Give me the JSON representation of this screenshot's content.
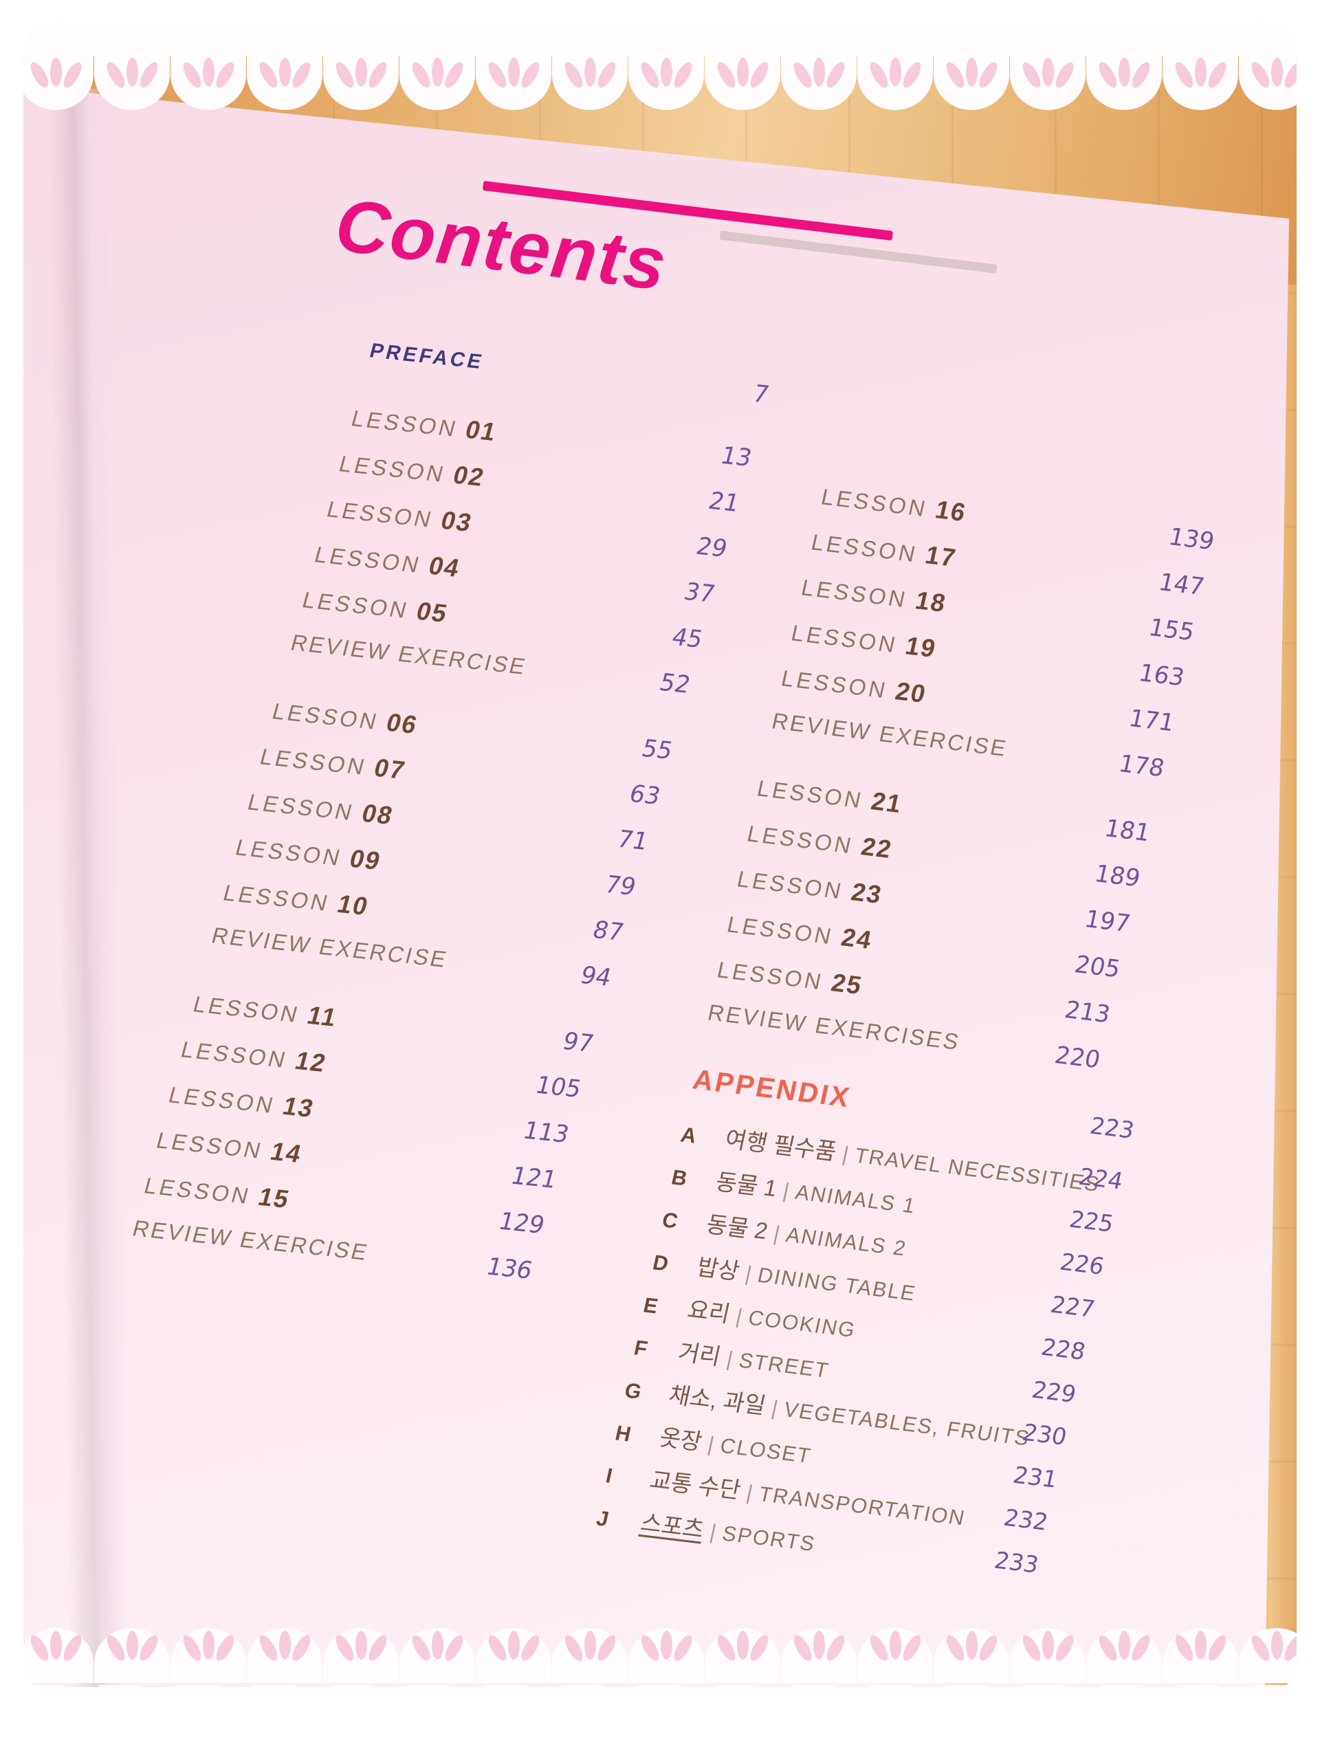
{
  "title": {
    "text": "Contents"
  },
  "divider": "|",
  "colors": {
    "accent_magenta": "#e8117f",
    "accent_coral": "#ee6450",
    "page_pink": "#fae2ec",
    "number_purple": "#6f549b",
    "lesson_brown": "#957361",
    "preface_navy": "#3e3a7a"
  },
  "left_rows": [
    {
      "label": "PREFACE",
      "page": "7"
    },
    {
      "label": "LESSON",
      "num": "01",
      "page": "13"
    },
    {
      "label": "LESSON",
      "num": "02",
      "page": "21"
    },
    {
      "label": "LESSON",
      "num": "03",
      "page": "29"
    },
    {
      "label": "LESSON",
      "num": "04",
      "page": "37"
    },
    {
      "label": "LESSON",
      "num": "05",
      "page": "45"
    },
    {
      "label": "REVIEW EXERCISE",
      "page": "52"
    },
    {
      "label": "LESSON",
      "num": "06",
      "page": "55"
    },
    {
      "label": "LESSON",
      "num": "07",
      "page": "63"
    },
    {
      "label": "LESSON",
      "num": "08",
      "page": "71"
    },
    {
      "label": "LESSON",
      "num": "09",
      "page": "79"
    },
    {
      "label": "LESSON",
      "num": "10",
      "page": "87"
    },
    {
      "label": "REVIEW EXERCISE",
      "page": "94"
    },
    {
      "label": "LESSON",
      "num": "11",
      "page": "97"
    },
    {
      "label": "LESSON",
      "num": "12",
      "page": "105"
    },
    {
      "label": "LESSON",
      "num": "13",
      "page": "113"
    },
    {
      "label": "LESSON",
      "num": "14",
      "page": "121"
    },
    {
      "label": "LESSON",
      "num": "15",
      "page": "129"
    },
    {
      "label": "REVIEW EXERCISE",
      "page": "136"
    }
  ],
  "right_rows": [
    {
      "label": "LESSON",
      "num": "16",
      "page": "139"
    },
    {
      "label": "LESSON",
      "num": "17",
      "page": "147"
    },
    {
      "label": "LESSON",
      "num": "18",
      "page": "155"
    },
    {
      "label": "LESSON",
      "num": "19",
      "page": "163"
    },
    {
      "label": "LESSON",
      "num": "20",
      "page": "171"
    },
    {
      "label": "REVIEW EXERCISE",
      "page": "178"
    },
    {
      "label": "LESSON",
      "num": "21",
      "page": "181"
    },
    {
      "label": "LESSON",
      "num": "22",
      "page": "189"
    },
    {
      "label": "LESSON",
      "num": "23",
      "page": "197"
    },
    {
      "label": "LESSON",
      "num": "24",
      "page": "205"
    },
    {
      "label": "LESSON",
      "num": "25",
      "page": "213"
    },
    {
      "label": "REVIEW EXERCISES",
      "page": "220"
    }
  ],
  "appendix": {
    "title": "APPENDIX",
    "page": "223",
    "items": [
      {
        "letter": "A",
        "korean": "여행 필수품",
        "english": "TRAVEL NECESSITIES",
        "page": "224"
      },
      {
        "letter": "B",
        "korean": "동물 1",
        "english": "ANIMALS 1",
        "page": "225"
      },
      {
        "letter": "C",
        "korean": "동물 2",
        "english": "ANIMALS 2",
        "page": "226"
      },
      {
        "letter": "D",
        "korean": "밥상",
        "english": "DINING TABLE",
        "page": "227"
      },
      {
        "letter": "E",
        "korean": "요리",
        "english": "COOKING",
        "page": "228"
      },
      {
        "letter": "F",
        "korean": "거리",
        "english": "STREET",
        "page": "229"
      },
      {
        "letter": "G",
        "korean": "채소, 과일",
        "english": "VEGETABLES, FRUITS",
        "page": "230"
      },
      {
        "letter": "H",
        "korean": "옷장",
        "english": "CLOSET",
        "page": "231"
      },
      {
        "letter": "I",
        "korean": "교통 수단",
        "english": "TRANSPORTATION",
        "page": "232"
      },
      {
        "letter": "J",
        "korean": "스포츠",
        "english": "SPORTS",
        "page": "233"
      }
    ]
  }
}
